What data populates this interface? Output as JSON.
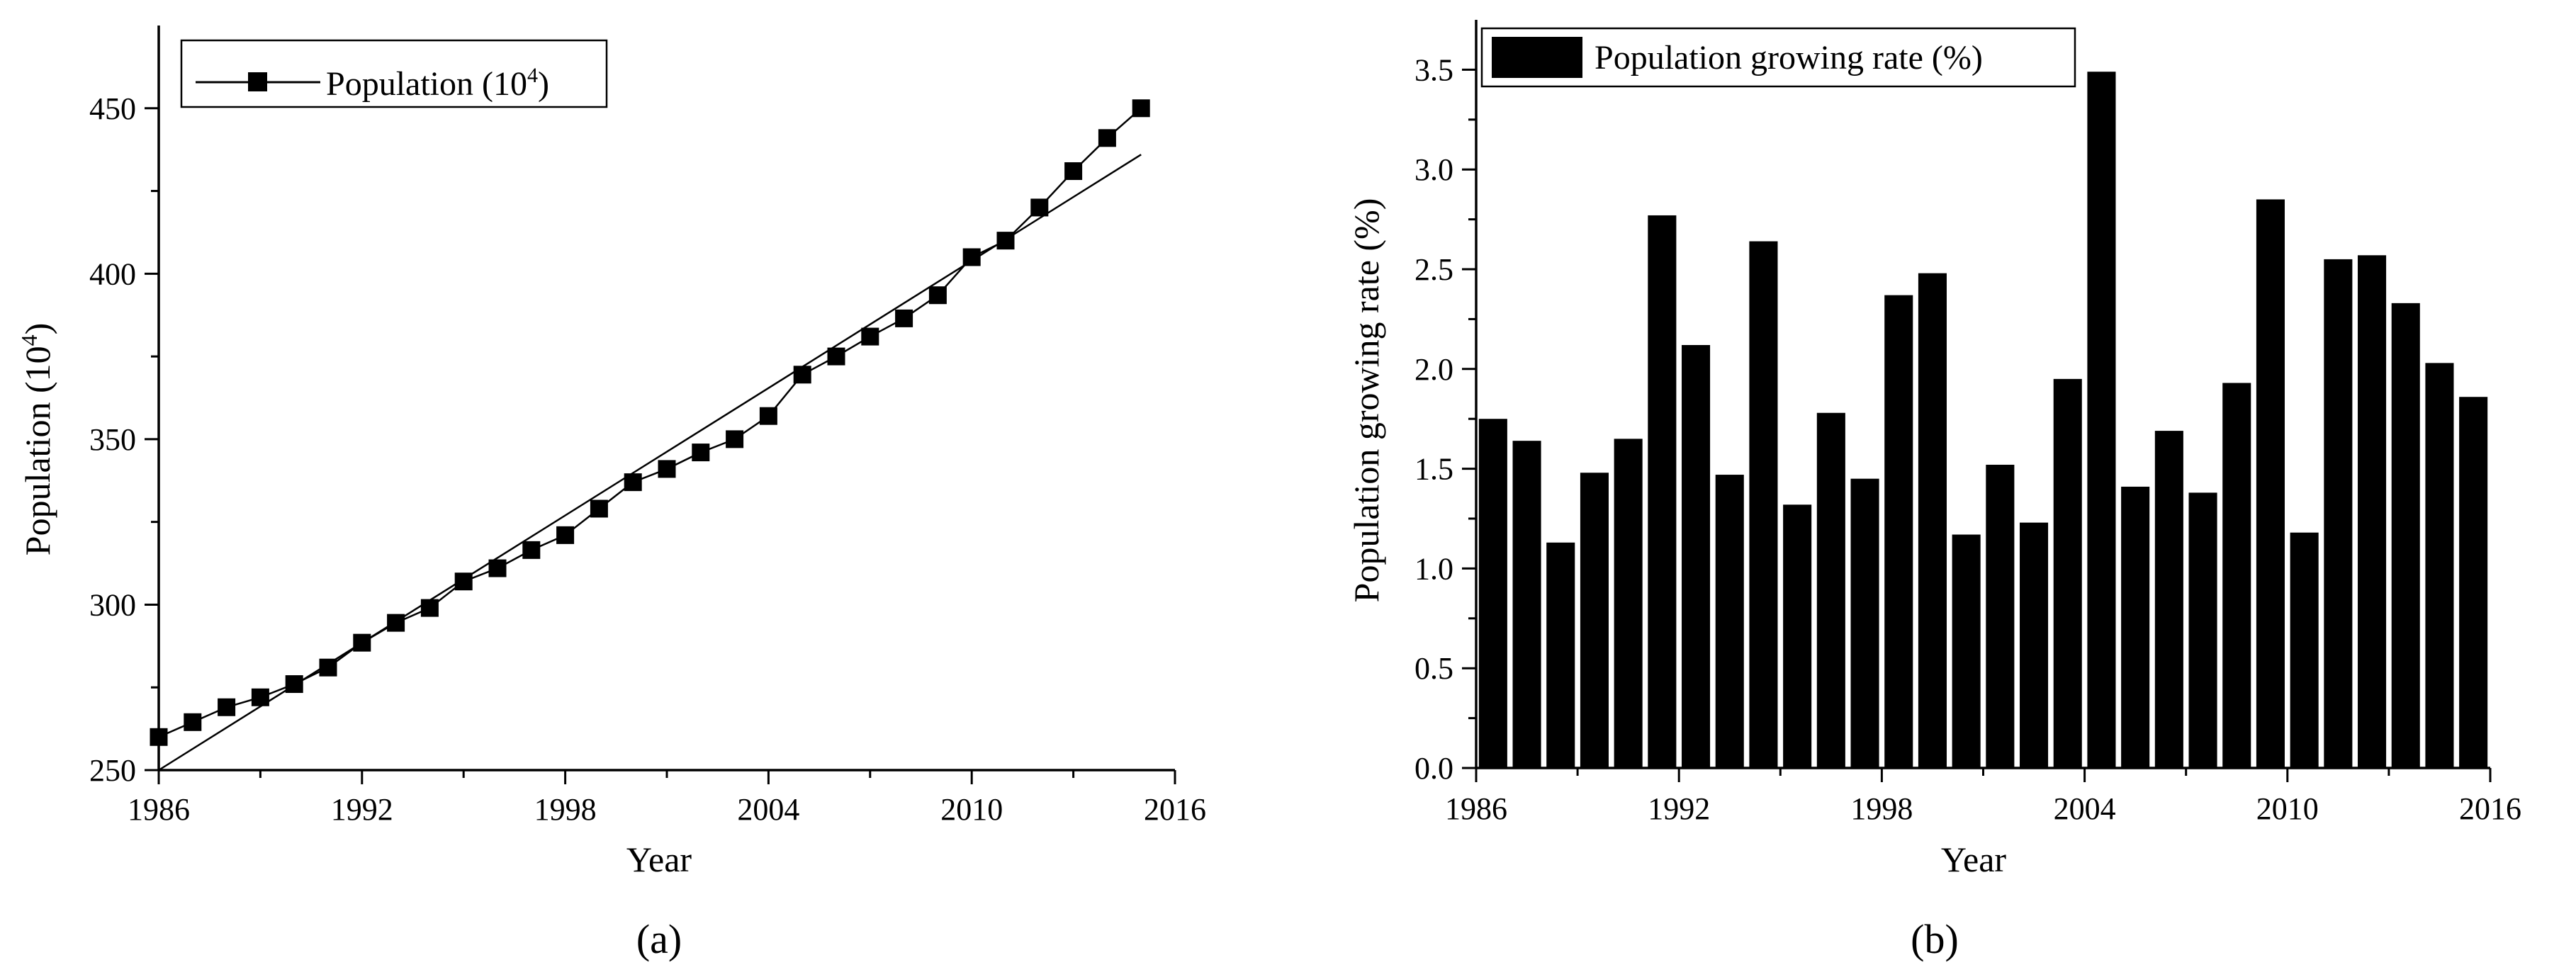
{
  "chart_data": [
    {
      "type": "line",
      "panel_label": "(a)",
      "xlabel": "Year",
      "ylabel": "Population (10",
      "ylabel_sup": "4",
      "ylabel_close": ")",
      "xlim": [
        1986,
        2016
      ],
      "ylim": [
        250,
        475
      ],
      "xticks": [
        1986,
        1992,
        1998,
        2004,
        2010,
        2016
      ],
      "yticks": [
        250,
        300,
        350,
        400,
        450
      ],
      "legend": {
        "label": "Population (10",
        "sup": "4",
        "close": ")",
        "position": "top-left"
      },
      "series": [
        {
          "name": "Population (10^4)",
          "marker": "square",
          "x": [
            1986,
            1987,
            1988,
            1989,
            1990,
            1991,
            1992,
            1993,
            1994,
            1995,
            1996,
            1997,
            1998,
            1999,
            2000,
            2001,
            2002,
            2003,
            2004,
            2005,
            2006,
            2007,
            2008,
            2009,
            2010,
            2011,
            2012,
            2013,
            2014,
            2015
          ],
          "y": [
            260,
            264.5,
            269,
            272,
            276,
            281,
            288.5,
            294.5,
            299,
            307,
            311,
            316.5,
            321,
            329,
            337,
            341,
            346,
            350,
            357,
            369.5,
            375,
            381,
            386.5,
            393.5,
            405,
            410,
            420,
            431,
            441,
            450
          ]
        },
        {
          "name": "Linear fit",
          "marker": "none",
          "x": [
            1986,
            2015
          ],
          "y": [
            250,
            436
          ]
        }
      ]
    },
    {
      "type": "bar",
      "panel_label": "(b)",
      "xlabel": "Year",
      "ylabel": "Population growing rate (%)",
      "xlim": [
        1986,
        2016
      ],
      "ylim": [
        0,
        3.75
      ],
      "xticks": [
        1986,
        1992,
        1998,
        2004,
        2010,
        2016
      ],
      "yticks": [
        "0.0",
        "0.5",
        "1.0",
        "1.5",
        "2.0",
        "2.5",
        "3.0",
        "3.5"
      ],
      "legend": {
        "label": "Population growing rate (%)",
        "position": "top-left"
      },
      "series": [
        {
          "name": "Population growing rate (%)",
          "x": [
            1986,
            1987,
            1988,
            1989,
            1990,
            1991,
            1992,
            1993,
            1994,
            1995,
            1996,
            1997,
            1998,
            1999,
            2000,
            2001,
            2002,
            2003,
            2004,
            2005,
            2006,
            2007,
            2008,
            2009,
            2010,
            2011,
            2012,
            2013,
            2014,
            2015
          ],
          "values": [
            1.75,
            1.64,
            1.13,
            1.48,
            1.65,
            2.77,
            2.12,
            1.47,
            2.64,
            1.32,
            1.78,
            1.45,
            2.37,
            2.48,
            1.17,
            1.52,
            1.23,
            1.95,
            3.49,
            1.41,
            1.69,
            1.38,
            1.93,
            2.85,
            1.18,
            2.55,
            2.57,
            2.33,
            2.03,
            1.86
          ]
        }
      ]
    }
  ]
}
